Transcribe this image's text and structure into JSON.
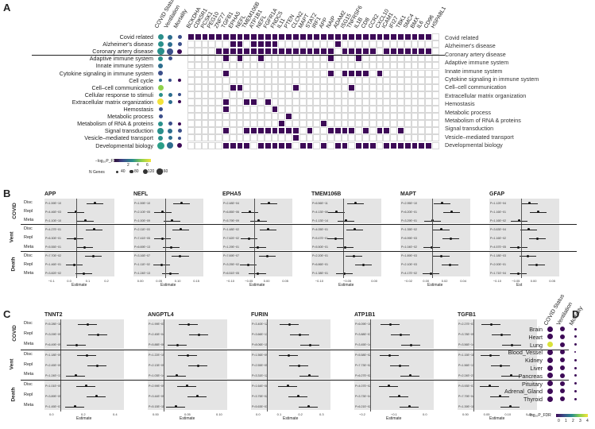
{
  "panel_labels": {
    "a": "A",
    "b": "B",
    "c": "C",
    "d": "D"
  },
  "panelA": {
    "score_cols": [
      "COVID Status",
      "Ventilation",
      "Mortality"
    ],
    "gene_cols": [
      "BCKDHA",
      "CDK5R1",
      "PCSK1",
      "PEG10",
      "ZNF77",
      "TGFB1",
      "EPHA5",
      "NEFL",
      "TMEM106B",
      "ATP1B1",
      "NEFL",
      "FGFR1A",
      "FNDC5",
      "IL11",
      "PTEN",
      "CLCN2",
      "MAPT",
      "STAT2",
      "IRF1",
      "APP",
      "NAIP",
      "ADAM2",
      "ISG15",
      "TNFRSF6",
      "IL1B",
      "CD8",
      "CCR2",
      "CXCL10",
      "ICAM1",
      "IFI27",
      "TBK1",
      "SMC4",
      "BMX",
      "IL6",
      "CD96",
      "HSPA8L1"
    ],
    "rows": [
      "Covid related",
      "Alzheimer's disease",
      "Coronary artery disease",
      "Adaptive immune system",
      "Innate immune system",
      "Cytokine signaling in immune system",
      "Cell cycle",
      "Cell–cell communication",
      "Cellular response to stimuli",
      "Extracellular matrix organization",
      "Hemostasis",
      "Metabolic process",
      "Metabolism of RNA & proteins",
      "Signal transduction",
      "Vesicle–mediated transport",
      "Developmental biology"
    ],
    "right_rows": [
      "Covid related",
      "Alzheimer's disease",
      "Coronary artery disease",
      "Adaptive immune system",
      "Innate immune system",
      "Cytokine signaling in immune system",
      "Cell–cell communication",
      "Extracellular matrix organization",
      "Hemostasis",
      "Metabolic process",
      "Metabolism of RNA & proteins",
      "Signal transduction",
      "Vesicle–mediated transport",
      "Developmental biology"
    ],
    "legend_color_title": "−log₁₀P_FDR",
    "legend_color_ticks": [
      "2",
      "4",
      "6"
    ],
    "legend_size_title": "N Genes",
    "legend_size_ticks": [
      "40",
      "80",
      "120",
      "160"
    ]
  },
  "panelB": {
    "genes": [
      "APP",
      "NEFL",
      "EPHA5",
      "TMEM106B",
      "MAPT",
      "GFAP"
    ],
    "groups": [
      "COVID",
      "Vent",
      "Death"
    ],
    "subrows": [
      "Disc",
      "Repl",
      "Meta"
    ],
    "xlabel": "Estimate",
    "pvals": [
      [
        "P=1.59E−10",
        "P=4.46E−03",
        "P=1.10E−10",
        "P=4.27E−01",
        "P=6.30E−01",
        "P=5.55E−01",
        "P=7.70E−02",
        "P=1.46E−01",
        "P=3.82E−02"
      ],
      [
        "P=1.59E−10",
        "P=2.10E−05",
        "P=1.00E−09",
        "P=2.11E−03",
        "P=7.41E−05",
        "P=6.69E−13",
        "P=3.16E−07",
        "P=1.11E−02",
        "P=1.24E−13"
      ],
      [
        "P=2.48E−04",
        "P=6.85E−06",
        "P=5.79E−09",
        "P=1.48E−02",
        "P=7.62E−02",
        "P=1.29E−01",
        "P=7.69E−07",
        "P=3.25E−02",
        "P=6.51E−05"
      ],
      [
        "P=6.56E−11",
        "P=4.13E−06",
        "P=1.13E−14",
        "P=4.05E−01",
        "P=5.47E−01",
        "P=5.50E−01",
        "P=2.20E−01",
        "P=6.86E−01",
        "P=1.38E−01"
      ],
      [
        "P=2.95E−10",
        "P=6.20E−01",
        "P=3.29E−01",
        "P=1.35E−02",
        "P=6.99E−03",
        "P=1.04E−02",
        "P=1.89E−03",
        "P=2.10E−03",
        "P=4.17E−02"
      ],
      [
        "P=1.12E−04",
        "P=1.16E−01",
        "P=1.16E−02",
        "P=3.63E−04",
        "P=1.16E−02",
        "P=4.57E−05",
        "P=1.18E−03",
        "P=2.00E−01",
        "P=1.71E−04"
      ]
    ],
    "ticks": [
      [
        "−0.1",
        "0.0",
        "0.1",
        "0.2"
      ],
      [
        "0.00",
        "0.05",
        "0.10",
        "0.15"
      ],
      [
        "−0.10",
        "−0.05",
        "0.00",
        "0.05"
      ],
      [
        "−0.10",
        "−0.05",
        "0.00"
      ],
      [
        "−0.02",
        "0.00",
        "0.02",
        "0.04"
      ],
      [
        "−0.10",
        "−0.05",
        "0.00",
        "0.05"
      ]
    ],
    "xlabels": [
      "Estimate",
      "Estimate",
      "Estimate",
      "Estimate",
      "Estimate",
      "Est"
    ]
  },
  "panelC": {
    "genes": [
      "TNNT2",
      "ANGPTL4",
      "FURIN",
      "ATP1B1",
      "TGFB1"
    ],
    "pvals": [
      [
        "P=5.28E−11",
        "P=3.09E−09",
        "P=6.49E−09",
        "P=1.18E−09",
        "P=2.45E−09",
        "P=1.24E−13",
        "P=1.01E−05",
        "P=3.89E−05",
        "P=1.45E−07"
      ],
      [
        "P=1.99E−03",
        "P=2.45E−04",
        "P=5.88E−06",
        "P=1.22E−10",
        "P=2.13E−09",
        "P=1.03E−14",
        "P=2.99E−09",
        "P=3.44E−09",
        "P=5.15E−11"
      ],
      [
        "P=3.40E−12",
        "P=3.66E−13",
        "P=8.06E−15",
        "P=1.56E−09",
        "P=2.55E−05",
        "P=3.31E−12",
        "P=1.64E−08",
        "P=3.75E−02",
        "P=5.63E−03"
      ],
      [
        "P=6.09E−10",
        "P=3.88E−07",
        "P=3.45E−14",
        "P=5.58E−02",
        "P=7.73E−02",
        "P=6.27E−02",
        "P=4.07E−02",
        "P=3.73E−04",
        "P=6.21E−02"
      ],
      [
        "P=2.27E−07",
        "P=3.78E−09",
        "P=3.56E−14",
        "P=1.15E−11",
        "P=1.56E−13",
        "P=2.24E−21",
        "P=3.93E−07",
        "P=7.79E−04",
        "P=1.39E−10"
      ]
    ],
    "ticks": [
      [
        "0.0",
        "0.2",
        "0.4"
      ],
      [
        "0.00",
        "0.05",
        "0.10"
      ],
      [
        "0.0",
        "0.1",
        "0.2",
        "0.3"
      ],
      [
        "−0.2",
        "−0.1",
        "0.0"
      ],
      [
        "0.00",
        "0.05",
        "0.10",
        "0.15"
      ]
    ]
  },
  "panelD": {
    "cols": [
      "COVID Status",
      "Ventilation",
      "Mortality"
    ],
    "rows": [
      "Brain",
      "Heart",
      "Lung",
      "Blood_Vessel",
      "Kidney",
      "Liver",
      "Pancreas",
      "Pituitary",
      "Adrenal_Gland",
      "Thyroid"
    ],
    "legend_title": "−log₁₀P_FDR",
    "legend_ticks": [
      "0",
      "1",
      "2",
      "3",
      "4"
    ]
  },
  "colors": {
    "purple": "#3d0a57",
    "teal": "#2a8f8b",
    "yellow": "#f3e33b",
    "band": "#e4e4e4"
  }
}
